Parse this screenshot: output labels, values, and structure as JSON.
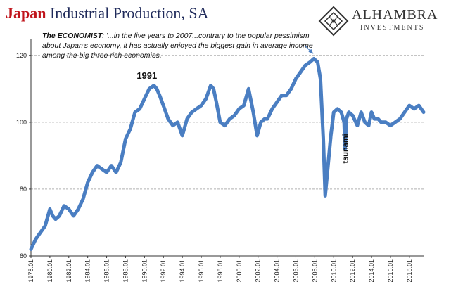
{
  "header": {
    "title_part1": "Japan",
    "title_part2": "Industrial Production, SA"
  },
  "logo": {
    "name": "ALHAMBRA",
    "subtitle": "INVESTMENTS"
  },
  "quote": {
    "source": "The ECONOMIST",
    "text": ": '...in the five years to 2007...contrary to the popular pessimism about Japan's economy, it has actually enjoyed the biggest gain in average income among the big three rich economies.'"
  },
  "colors": {
    "title_red": "#c0141b",
    "title_navy": "#1f2a5a",
    "series": "#4a7ec2",
    "grid": "#b0b0b0"
  },
  "chart_data": {
    "type": "line",
    "title": "Japan Industrial Production, SA",
    "xlabel": "",
    "ylabel": "",
    "ylim": [
      60,
      125
    ],
    "yticks": [
      60,
      80,
      100,
      120
    ],
    "xlim": [
      1978.0,
      2019.5
    ],
    "xtick_labels": [
      "1978.01",
      "1980.01",
      "1982.01",
      "1984.01",
      "1986.01",
      "1988.01",
      "1990.01",
      "1992.01",
      "1994.01",
      "1996.01",
      "1998.01",
      "2000.01",
      "2002.01",
      "2004.01",
      "2006.01",
      "2008.01",
      "2010.01",
      "2012.01",
      "2014.01",
      "2016.01",
      "2018.01"
    ],
    "grid": "horizontal-dashed",
    "annotations": [
      {
        "text": "1991",
        "x": 1991.0,
        "y": 113
      },
      {
        "text": "tsunami",
        "x": 2011.2,
        "y": 90,
        "rotated": true
      },
      {
        "text": "",
        "x": 2008.0,
        "y": 120,
        "arrow": true
      }
    ],
    "series": [
      {
        "x": [
          1978.0,
          1978.5,
          1979.0,
          1979.5,
          1980.0,
          1980.3,
          1980.6,
          1981.0,
          1981.5,
          1982.0,
          1982.5,
          1983.0,
          1983.5,
          1984.0,
          1984.5,
          1985.0,
          1985.5,
          1986.0,
          1986.5,
          1987.0,
          1987.5,
          1988.0,
          1988.5,
          1989.0,
          1989.5,
          1990.0,
          1990.5,
          1991.0,
          1991.3,
          1991.6,
          1992.0,
          1992.5,
          1993.0,
          1993.5,
          1994.0,
          1994.5,
          1995.0,
          1995.5,
          1996.0,
          1996.5,
          1997.0,
          1997.3,
          1997.6,
          1998.0,
          1998.5,
          1999.0,
          1999.5,
          2000.0,
          2000.5,
          2001.0,
          2001.5,
          2001.9,
          2002.3,
          2002.7,
          2003.0,
          2003.5,
          2004.0,
          2004.5,
          2005.0,
          2005.5,
          2006.0,
          2006.5,
          2007.0,
          2007.5,
          2007.9,
          2008.3,
          2008.6,
          2008.9,
          2009.1,
          2009.4,
          2009.7,
          2010.0,
          2010.4,
          2010.8,
          2011.1,
          2011.2,
          2011.35,
          2011.6,
          2012.0,
          2012.5,
          2012.9,
          2013.3,
          2013.7,
          2014.0,
          2014.3,
          2014.7,
          2015.0,
          2015.5,
          2016.0,
          2016.5,
          2017.0,
          2017.5,
          2018.0,
          2018.5,
          2019.0,
          2019.5
        ],
        "values": [
          62,
          65,
          67,
          69,
          74,
          72,
          71,
          72,
          75,
          74,
          72,
          74,
          77,
          82,
          85,
          87,
          86,
          85,
          87,
          85,
          88,
          95,
          98,
          103,
          104,
          107,
          110,
          111,
          110,
          108,
          105,
          101,
          99,
          100,
          96,
          101,
          103,
          104,
          105,
          107,
          111,
          110,
          106,
          100,
          99,
          101,
          102,
          104,
          105,
          110,
          103,
          96,
          100,
          101,
          101,
          104,
          106,
          108,
          108,
          110,
          113,
          115,
          117,
          118,
          119,
          118,
          113,
          95,
          78,
          87,
          96,
          103,
          104,
          103,
          100,
          92,
          101,
          103,
          102,
          99,
          103,
          100,
          99,
          103,
          101,
          101,
          100,
          100,
          99,
          100,
          101,
          103,
          105,
          104,
          105,
          103
        ]
      }
    ]
  }
}
